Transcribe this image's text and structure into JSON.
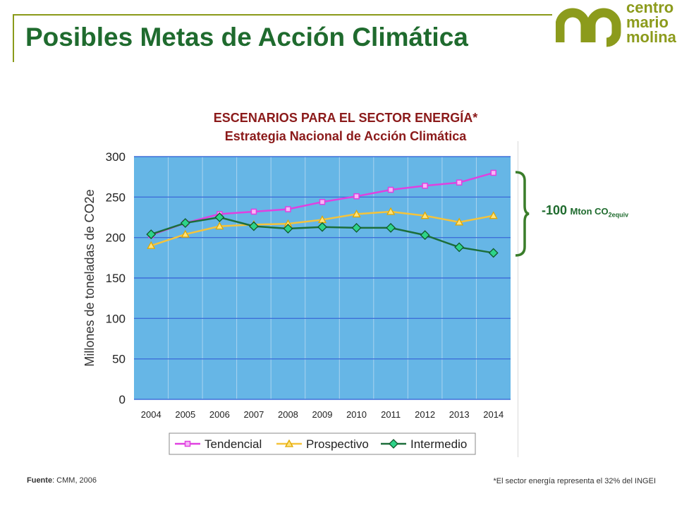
{
  "header": {
    "title": "Posibles Metas de Acción Climática",
    "logo_lines": [
      "centro",
      "mario",
      "molina"
    ]
  },
  "chart_heading": {
    "line1": "ESCENARIOS PARA EL SECTOR ENERGÍA*",
    "line2": "Estrategia Nacional de Acción Climática"
  },
  "annotation": {
    "value": "-100",
    "unit": "Mton CO",
    "unit_sub": "2equiv"
  },
  "footer": {
    "source_label": "Fuente",
    "source_text": ": CMM, 2006",
    "note": "*El sector energía representa el 32% del INGEI"
  },
  "colors": {
    "title_green": "#1f6b2e",
    "logo_olive": "#8c9b1c",
    "heading_red": "#8b1a1a",
    "plot_bg": "#66b6e6",
    "grid": "#3e6fd8",
    "tendencial": "#e040e0",
    "prospectivo": "#f5c33b",
    "intermedio": "#1c6e3a"
  },
  "chart_data": {
    "type": "line",
    "ylabel": "Millones de toneladas de CO2e",
    "xlabel": "",
    "ylim": [
      0,
      300
    ],
    "yticks": [
      0,
      50,
      100,
      150,
      200,
      250,
      300
    ],
    "x": [
      "2004",
      "2005",
      "2006",
      "2007",
      "2008",
      "2009",
      "2010",
      "2011",
      "2012",
      "2013",
      "2014"
    ],
    "legend_position": "bottom",
    "grid": true,
    "series": [
      {
        "name": "Tendencial",
        "marker": "square",
        "color": "#e040e0",
        "values": [
          203,
          218,
          229,
          232,
          235,
          244,
          251,
          259,
          264,
          268,
          280
        ]
      },
      {
        "name": "Prospectivo",
        "marker": "triangle",
        "color": "#f5c33b",
        "values": [
          190,
          204,
          214,
          216,
          217,
          222,
          229,
          232,
          227,
          219,
          227
        ]
      },
      {
        "name": "Intermedio",
        "marker": "diamond",
        "color": "#1c6e3a",
        "values": [
          204,
          218,
          225,
          214,
          211,
          213,
          212,
          212,
          203,
          188,
          181
        ]
      }
    ]
  }
}
